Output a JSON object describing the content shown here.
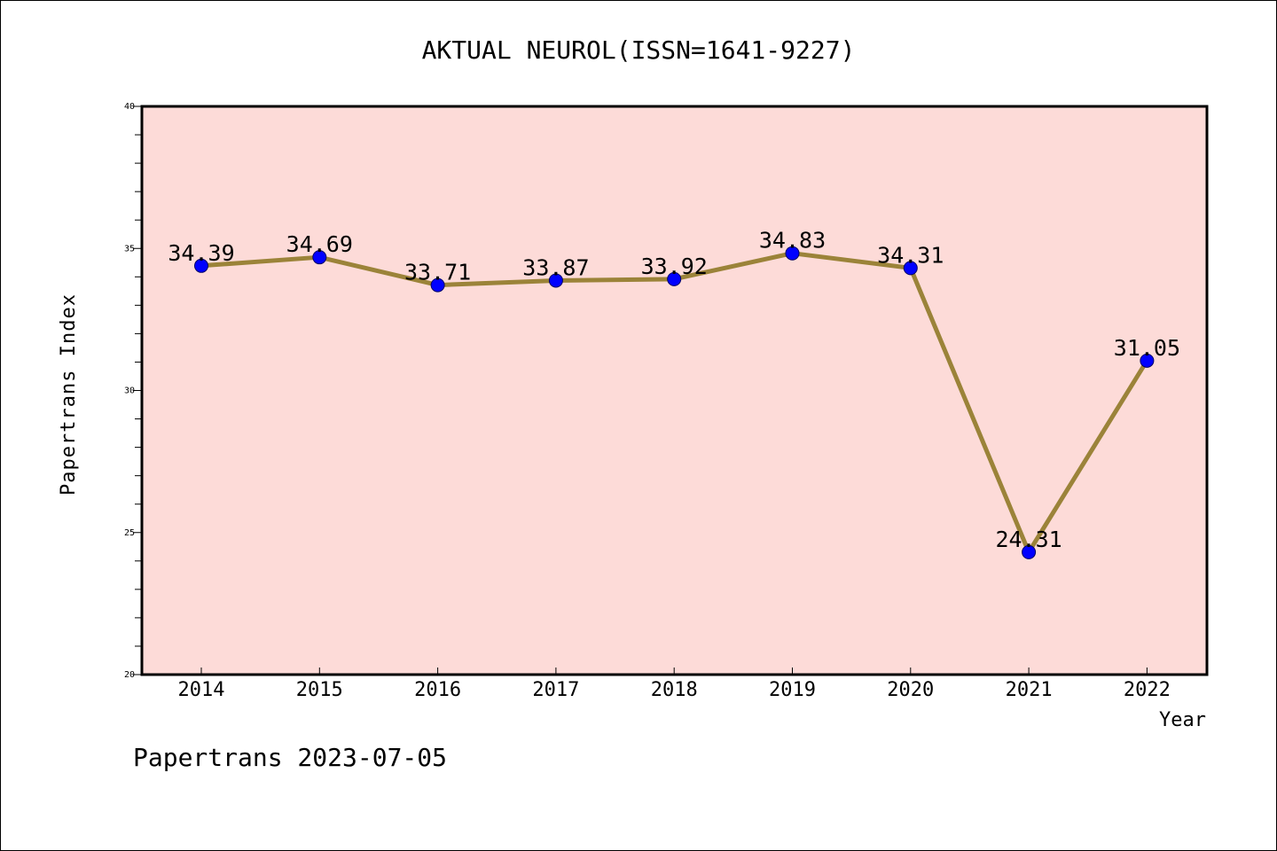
{
  "chart_data": {
    "type": "line",
    "title": "AKTUAL NEUROL(ISSN=1641-9227)",
    "xlabel": "Year",
    "ylabel": "Papertrans Index",
    "categories": [
      "2014",
      "2015",
      "2016",
      "2017",
      "2018",
      "2019",
      "2020",
      "2021",
      "2022"
    ],
    "series": [
      {
        "values": [
          34.39,
          34.69,
          33.71,
          33.87,
          33.92,
          34.83,
          34.31,
          24.31,
          31.05
        ],
        "labels": [
          "34.39",
          "34.69",
          "33.71",
          "33.87",
          "33.92",
          "34.83",
          "34.31",
          "24.31",
          "31.05"
        ]
      }
    ],
    "ylim": [
      20,
      40
    ],
    "yticks": [
      "20",
      "25",
      "30",
      "35",
      "40"
    ],
    "grid": false,
    "legend": "none"
  },
  "footer": "Papertrans 2023-07-05",
  "colors": {
    "plot_background": "#fddbd8",
    "line": "#9b8339",
    "marker": "#0000ff",
    "axes": "#000000"
  }
}
